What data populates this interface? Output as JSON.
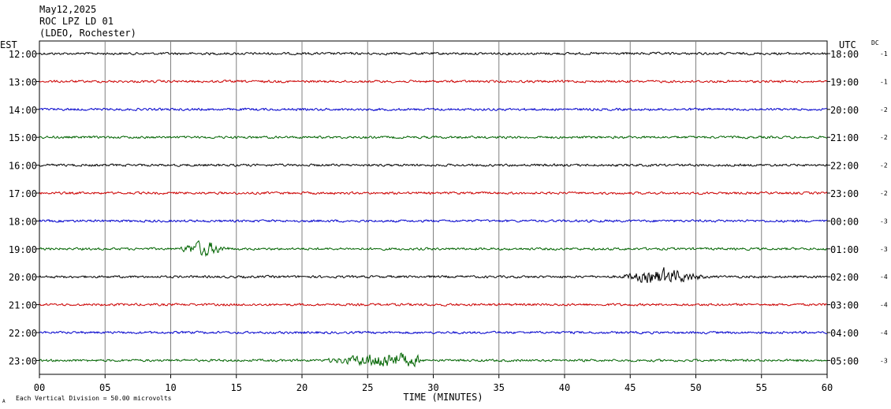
{
  "header": {
    "date": "May12,2025",
    "station": "ROC LPZ LD 01",
    "network": "(LDEO, Rochester)"
  },
  "labels": {
    "left_timezone": "EST",
    "right_timezone": "UTC",
    "dc_header": "DC",
    "footer_note": "Each Vertical Division =   50.00 microvolts",
    "footer_mark": "A"
  },
  "chart_data": {
    "type": "line",
    "title": "ROC LPZ LD 01",
    "xlabel": "TIME (MINUTES)",
    "xlim": [
      0,
      60
    ],
    "x_ticks": [
      "00",
      "05",
      "10",
      "15",
      "20",
      "25",
      "30",
      "35",
      "40",
      "45",
      "50",
      "55",
      "60"
    ],
    "grid": true,
    "trace_colors": [
      "#000000",
      "#cc0000",
      "#0000cc",
      "#006400"
    ],
    "rows": [
      {
        "est": "12:00",
        "utc": "18:00",
        "dc": "-1"
      },
      {
        "est": "13:00",
        "utc": "19:00",
        "dc": "-1"
      },
      {
        "est": "14:00",
        "utc": "20:00",
        "dc": "-2"
      },
      {
        "est": "15:00",
        "utc": "21:00",
        "dc": "-2"
      },
      {
        "est": "16:00",
        "utc": "22:00",
        "dc": "-2"
      },
      {
        "est": "17:00",
        "utc": "23:00",
        "dc": "-2"
      },
      {
        "est": "18:00",
        "utc": "00:00",
        "dc": "-3"
      },
      {
        "est": "19:00",
        "utc": "01:00",
        "dc": "-3"
      },
      {
        "est": "20:00",
        "utc": "02:00",
        "dc": "-4"
      },
      {
        "est": "21:00",
        "utc": "03:00",
        "dc": "-4"
      },
      {
        "est": "22:00",
        "utc": "04:00",
        "dc": "-4"
      },
      {
        "est": "23:00",
        "utc": "05:00",
        "dc": "-3"
      }
    ],
    "events": [
      {
        "row": 7,
        "start_min": 10.5,
        "end_min": 15.5,
        "peak_min": 12.5
      },
      {
        "row": 8,
        "start_min": 44.0,
        "end_min": 53.5,
        "peak_min": 47.5
      },
      {
        "row": 11,
        "start_min": 21.5,
        "end_min": 29.0,
        "peak_min": 26.5
      }
    ]
  }
}
